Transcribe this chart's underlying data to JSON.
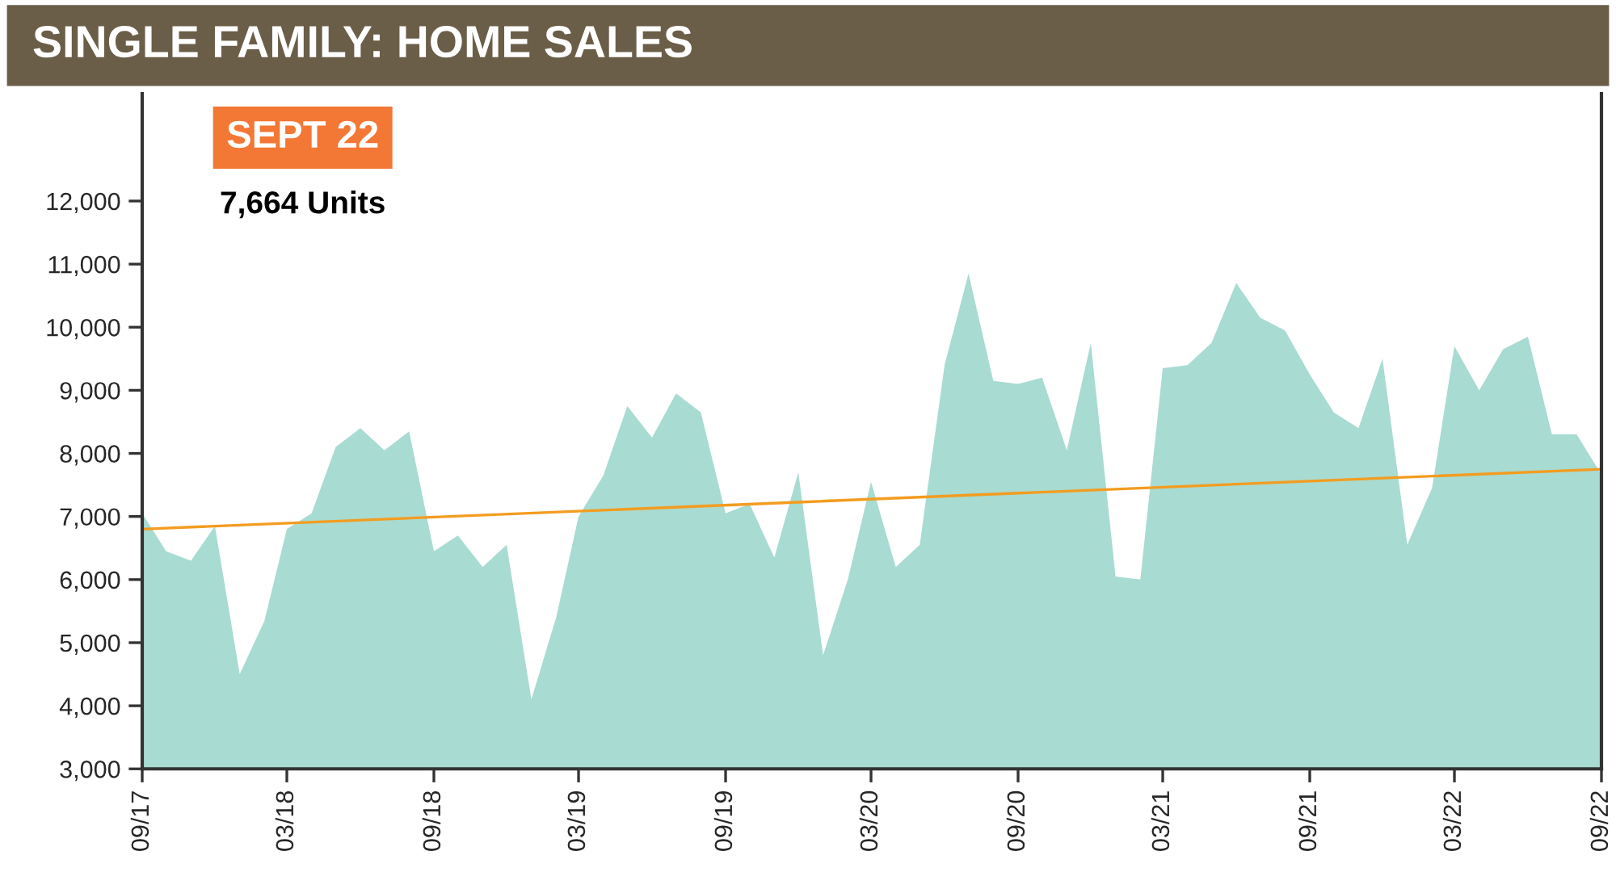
{
  "chart_data": {
    "type": "area",
    "title": "SINGLE FAMILY: HOME SALES",
    "x": [
      "2017-09",
      "2017-10",
      "2017-11",
      "2017-12",
      "2018-01",
      "2018-02",
      "2018-03",
      "2018-04",
      "2018-05",
      "2018-06",
      "2018-07",
      "2018-08",
      "2018-09",
      "2018-10",
      "2018-11",
      "2018-12",
      "2019-01",
      "2019-02",
      "2019-03",
      "2019-04",
      "2019-05",
      "2019-06",
      "2019-07",
      "2019-08",
      "2019-09",
      "2019-10",
      "2019-11",
      "2019-12",
      "2020-01",
      "2020-02",
      "2020-03",
      "2020-04",
      "2020-05",
      "2020-06",
      "2020-07",
      "2020-08",
      "2020-09",
      "2020-10",
      "2020-11",
      "2020-12",
      "2021-01",
      "2021-02",
      "2021-03",
      "2021-04",
      "2021-05",
      "2021-06",
      "2021-07",
      "2021-08",
      "2021-09",
      "2021-10",
      "2021-11",
      "2021-12",
      "2022-01",
      "2022-02",
      "2022-03",
      "2022-04",
      "2022-05",
      "2022-06",
      "2022-07",
      "2022-08",
      "2022-09"
    ],
    "series": [
      {
        "color": "#a8dbd2",
        "values": [
          7050,
          6450,
          6300,
          6850,
          4500,
          5350,
          6800,
          7050,
          8100,
          8400,
          8050,
          8350,
          6450,
          6700,
          6200,
          6550,
          4100,
          5400,
          7000,
          7650,
          8750,
          8250,
          8950,
          8650,
          7050,
          7200,
          6350,
          7700,
          4800,
          6000,
          7550,
          6200,
          6550,
          9400,
          10850,
          9150,
          9100,
          9200,
          8050,
          9750,
          6050,
          6000,
          9350,
          9400,
          9750,
          10700,
          10150,
          9950,
          9250,
          8650,
          8400,
          9500,
          6550,
          7450,
          9700,
          9000,
          9650,
          9850,
          8300,
          8300,
          7664
        ]
      },
      {
        "type": "line",
        "color": "#f39c1f",
        "x": [
          "2017-09",
          "2022-09"
        ],
        "values": [
          6800,
          7750
        ]
      }
    ],
    "annotations": [
      "SEPT 22",
      "7,664 Units"
    ],
    "xlim": [
      "2017-09",
      "2022-09"
    ],
    "xticks": [
      {
        "value": "2017-09",
        "label": "09/17"
      },
      {
        "value": "2018-03",
        "label": "03/18"
      },
      {
        "value": "2018-09",
        "label": "09/18"
      },
      {
        "value": "2019-03",
        "label": "03/19"
      },
      {
        "value": "2019-09",
        "label": "09/19"
      },
      {
        "value": "2020-03",
        "label": "03/20"
      },
      {
        "value": "2020-09",
        "label": "09/20"
      },
      {
        "value": "2021-03",
        "label": "03/21"
      },
      {
        "value": "2021-09",
        "label": "09/21"
      },
      {
        "value": "2022-03",
        "label": "03/22"
      },
      {
        "value": "2022-09",
        "label": "09/22"
      }
    ],
    "ylim": [
      3000,
      13700
    ],
    "yticks": [
      {
        "value": 3000,
        "label": "3,000"
      },
      {
        "value": 4000,
        "label": "4,000"
      },
      {
        "value": 5000,
        "label": "5,000"
      },
      {
        "value": 6000,
        "label": "6,000"
      },
      {
        "value": 7000,
        "label": "7,000"
      },
      {
        "value": 8000,
        "label": "8,000"
      },
      {
        "value": 9000,
        "label": "9,000"
      },
      {
        "value": 10000,
        "label": "10,000"
      },
      {
        "value": 11000,
        "label": "11,000"
      },
      {
        "value": 12000,
        "label": "12,000"
      }
    ],
    "grid": false,
    "legend": false
  }
}
